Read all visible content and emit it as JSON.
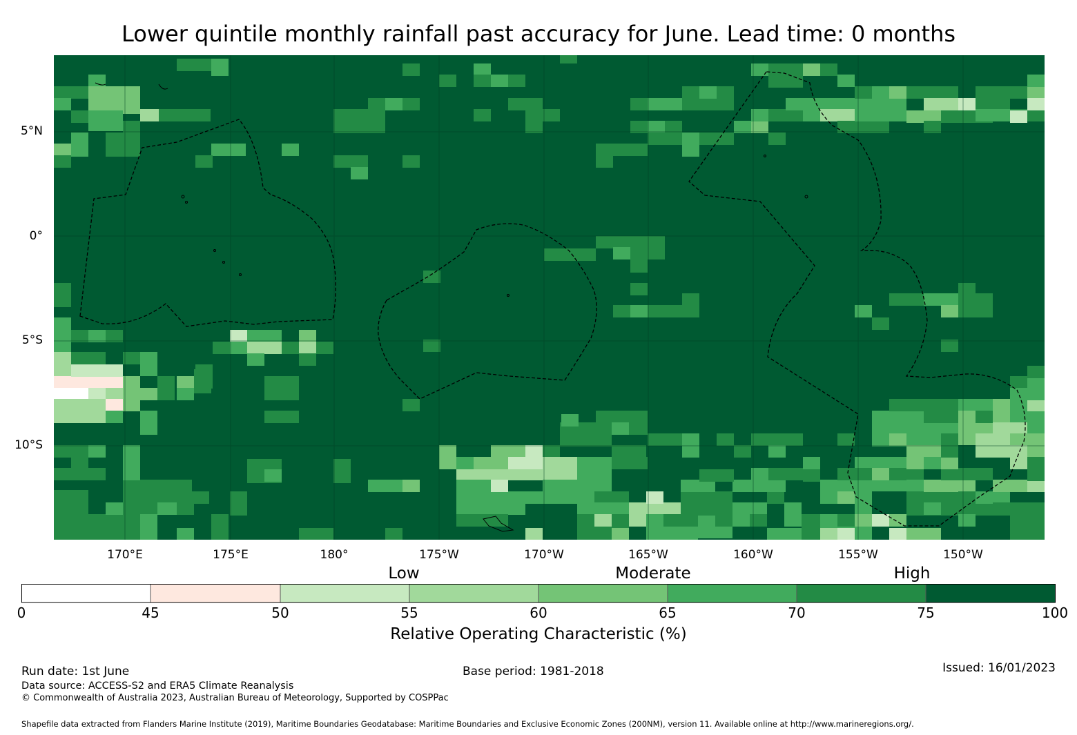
{
  "title": "Lower quintile monthly rainfall past accuracy for June. Lead time: 0 months",
  "map": {
    "lat_labels": [
      "5°N",
      "0°",
      "5°S",
      "10°S"
    ],
    "lon_labels": [
      "170°E",
      "175°E",
      "180°",
      "175°W",
      "170°W",
      "165°W",
      "160°W",
      "155°W",
      "150°W"
    ],
    "background_color": "#005a32",
    "legend_categories": [
      "Low",
      "Moderate",
      "High"
    ]
  },
  "colorbar": {
    "ticks": [
      "0",
      "45",
      "50",
      "55",
      "60",
      "65",
      "70",
      "75",
      "100"
    ],
    "colors": [
      "#ffffff",
      "#fee8df",
      "#c7e9c0",
      "#a1d99b",
      "#74c476",
      "#41ab5d",
      "#238b45",
      "#005a32"
    ],
    "label": "Relative Operating Characteristic (%)"
  },
  "footer": {
    "run_date": "Run date: 1st June",
    "base_period": "Base period: 1981-2018",
    "issued": "Issued: 16/01/2023",
    "data_source": "Data source: ACCESS-S2 and ERA5 Climate Reanalysis",
    "copyright": "© Commonwealth of Australia 2023, Australian Bureau of Meteorology, Supported by COSPPac",
    "shapefile": "Shapefile data extracted from Flanders Marine Institute (2019), Maritime Boundaries Geodatabase: Maritime Boundaries and Exclusive Economic Zones (200NM), version 11. Available online at http://www.marineregions.org/."
  }
}
